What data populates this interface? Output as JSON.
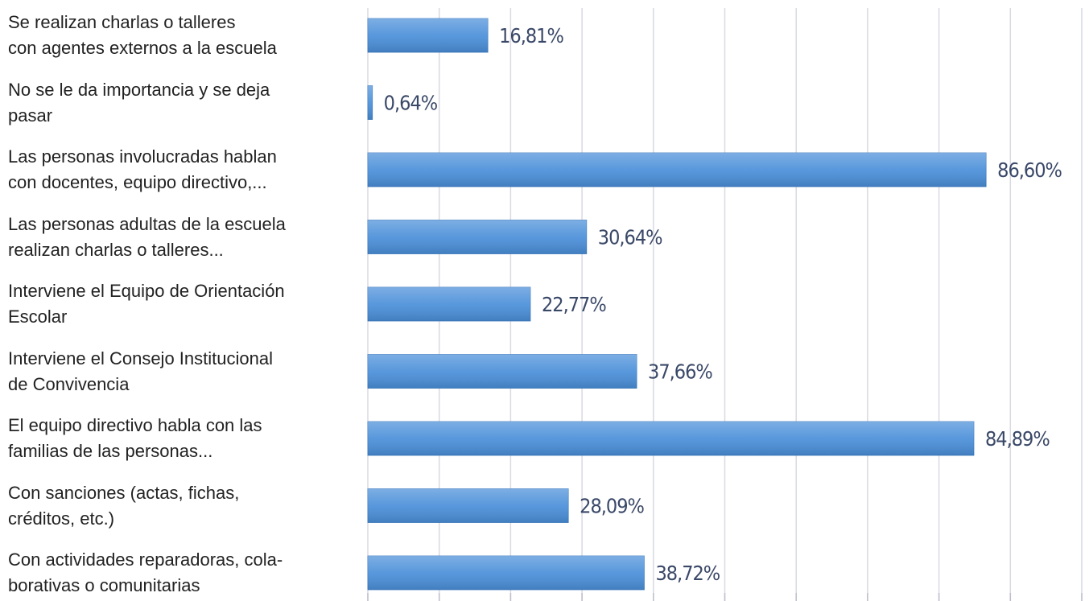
{
  "chart_data": {
    "type": "bar",
    "orientation": "horizontal",
    "categories": [
      "Se realizan charlas o talleres\ncon agentes externos a la escuela",
      "No se le da importancia y se deja\npasar",
      "Las personas involucradas hablan\ncon docentes, equipo directivo,...",
      "Las personas adultas de la escuela\nrealizan charlas o talleres...",
      "Interviene el Equipo de Orientación\nEscolar",
      "Interviene el Consejo Institucional\nde Convivencia",
      "El equipo directivo habla con las\nfamilias de las personas...",
      "Con sanciones (actas, fichas,\ncréditos, etc.)",
      "Con actividades reparadoras, cola-\nborativas o comunitarias"
    ],
    "values": [
      16.81,
      0.64,
      86.6,
      30.64,
      22.77,
      37.66,
      84.89,
      28.09,
      38.72
    ],
    "value_labels": [
      "16,81%",
      "0,64%",
      "86,60%",
      "30,64%",
      "22,77%",
      "37,66%",
      "84,89%",
      "28,09%",
      "38,72%"
    ],
    "color": "#4a8fd9",
    "xlim": [
      0,
      100
    ],
    "xticks": [
      0,
      10,
      20,
      30,
      40,
      50,
      60,
      70,
      80,
      90,
      100
    ],
    "grid": true
  }
}
